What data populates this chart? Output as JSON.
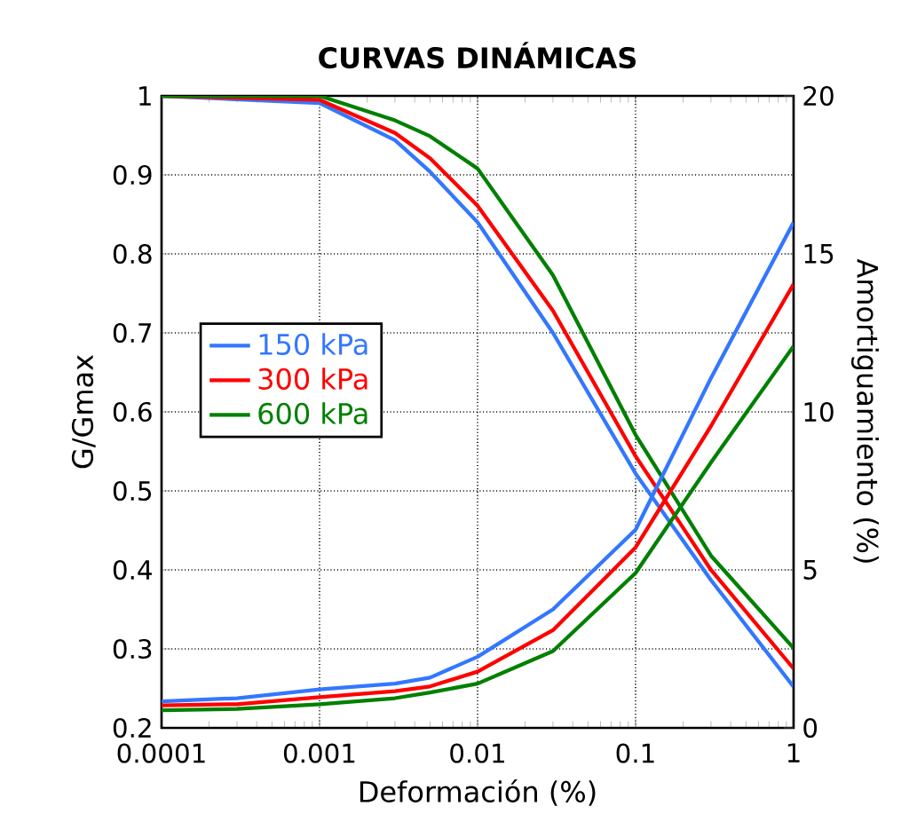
{
  "chart_data": {
    "type": "line",
    "title": "CURVAS DINÁMICAS",
    "xlabel": "Deformación (%)",
    "ylabel": "G/Gmax",
    "y2label": "Amortiguamiento (%)",
    "log": "x",
    "xlim": [
      0.0001,
      1
    ],
    "xticks": [
      0.0001,
      0.001,
      0.01,
      0.1,
      1
    ],
    "ylim": [
      0.2,
      1
    ],
    "yticks": [
      0.2,
      0.3,
      0.4,
      0.5,
      0.6,
      0.7,
      0.8,
      0.9,
      1
    ],
    "y2lim": [
      0,
      20
    ],
    "y2ticks": [
      0,
      5,
      10,
      15,
      20
    ],
    "grid": true,
    "legend": "left",
    "line_style": "solid",
    "marker": "none",
    "series": [
      {
        "name": "150 kPa",
        "color": "#3377ff",
        "x": [
          0.0001,
          0.001,
          0.003,
          0.005,
          0.01,
          0.03,
          0.1,
          0.3,
          1
        ],
        "values": [
          1.0,
          0.991,
          0.944,
          0.904,
          0.84,
          0.7,
          0.522,
          0.387,
          0.252
        ]
      },
      {
        "name": "300 kPa",
        "color": "#ff0000",
        "x": [
          0.0001,
          0.001,
          0.003,
          0.005,
          0.01,
          0.03,
          0.1,
          0.3,
          1
        ],
        "values": [
          1.0,
          0.995,
          0.953,
          0.921,
          0.861,
          0.728,
          0.544,
          0.4,
          0.275
        ]
      },
      {
        "name": "600 kPa",
        "color": "#008000",
        "x": [
          0.0001,
          0.001,
          0.003,
          0.005,
          0.01,
          0.03,
          0.1,
          0.3,
          1
        ],
        "values": [
          1.0,
          1.0,
          0.969,
          0.949,
          0.908,
          0.773,
          0.571,
          0.418,
          0.301
        ]
      },
      {
        "color": "#3377ff",
        "axis": "y2",
        "x": [
          0.0001,
          0.0003,
          0.001,
          0.003,
          0.005,
          0.01,
          0.03,
          0.1,
          0.3,
          1
        ],
        "values": [
          0.84,
          0.94,
          1.22,
          1.4,
          1.59,
          2.25,
          3.75,
          6.27,
          11.07,
          16.0
        ]
      },
      {
        "color": "#ff0000",
        "axis": "y2",
        "x": [
          0.0001,
          0.0003,
          0.001,
          0.003,
          0.005,
          0.01,
          0.03,
          0.1,
          0.3,
          1
        ],
        "values": [
          0.71,
          0.75,
          0.97,
          1.16,
          1.31,
          1.78,
          3.09,
          5.71,
          9.55,
          14.04
        ]
      },
      {
        "color": "#008000",
        "axis": "y2",
        "x": [
          0.0001,
          0.0003,
          0.001,
          0.003,
          0.005,
          0.01,
          0.03,
          0.1,
          0.3,
          1
        ],
        "values": [
          0.56,
          0.6,
          0.75,
          0.94,
          1.12,
          1.4,
          2.43,
          4.9,
          8.4,
          12.08
        ]
      }
    ]
  }
}
